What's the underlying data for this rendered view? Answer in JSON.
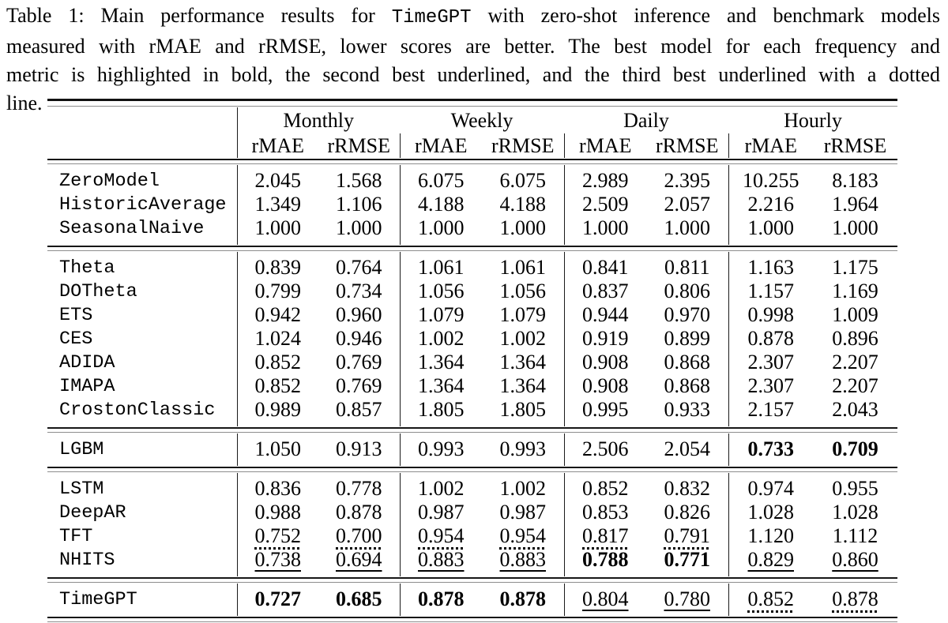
{
  "page": {
    "background": "#ffffff",
    "text_color": "#000000",
    "rule_color": "#161616"
  },
  "caption": {
    "line1_pre": "Table 1: Main performance results for ",
    "line1_code": "TimeGPT",
    "line1_post": " with zero-shot inference and benchmark models",
    "line2": "measured with rMAE and rRMSE, lower scores are better. The best model for each frequency and",
    "line3": "metric is highlighted in bold, the second best underlined, and the third best underlined with a dotted",
    "line4": "line."
  },
  "table": {
    "groups": [
      "Monthly",
      "Weekly",
      "Daily",
      "Hourly"
    ],
    "metrics": [
      "rMAE",
      "rRMSE"
    ],
    "style_key": {
      "p": "plain",
      "b": "bold (best)",
      "u": "underline (second best)",
      "d": "dotted underline (third best)"
    },
    "sections": [
      {
        "rows": [
          {
            "model": "ZeroModel",
            "values": [
              "2.045",
              "1.568",
              "6.075",
              "6.075",
              "2.989",
              "2.395",
              "10.255",
              "8.183"
            ],
            "styles": [
              "p",
              "p",
              "p",
              "p",
              "p",
              "p",
              "p",
              "p"
            ]
          },
          {
            "model": "HistoricAverage",
            "values": [
              "1.349",
              "1.106",
              "4.188",
              "4.188",
              "2.509",
              "2.057",
              "2.216",
              "1.964"
            ],
            "styles": [
              "p",
              "p",
              "p",
              "p",
              "p",
              "p",
              "p",
              "p"
            ]
          },
          {
            "model": "SeasonalNaive",
            "values": [
              "1.000",
              "1.000",
              "1.000",
              "1.000",
              "1.000",
              "1.000",
              "1.000",
              "1.000"
            ],
            "styles": [
              "p",
              "p",
              "p",
              "p",
              "p",
              "p",
              "p",
              "p"
            ]
          }
        ]
      },
      {
        "rows": [
          {
            "model": "Theta",
            "values": [
              "0.839",
              "0.764",
              "1.061",
              "1.061",
              "0.841",
              "0.811",
              "1.163",
              "1.175"
            ],
            "styles": [
              "p",
              "p",
              "p",
              "p",
              "p",
              "p",
              "p",
              "p"
            ]
          },
          {
            "model": "DOTheta",
            "values": [
              "0.799",
              "0.734",
              "1.056",
              "1.056",
              "0.837",
              "0.806",
              "1.157",
              "1.169"
            ],
            "styles": [
              "p",
              "p",
              "p",
              "p",
              "p",
              "p",
              "p",
              "p"
            ]
          },
          {
            "model": "ETS",
            "values": [
              "0.942",
              "0.960",
              "1.079",
              "1.079",
              "0.944",
              "0.970",
              "0.998",
              "1.009"
            ],
            "styles": [
              "p",
              "p",
              "p",
              "p",
              "p",
              "p",
              "p",
              "p"
            ]
          },
          {
            "model": "CES",
            "values": [
              "1.024",
              "0.946",
              "1.002",
              "1.002",
              "0.919",
              "0.899",
              "0.878",
              "0.896"
            ],
            "styles": [
              "p",
              "p",
              "p",
              "p",
              "p",
              "p",
              "p",
              "p"
            ]
          },
          {
            "model": "ADIDA",
            "values": [
              "0.852",
              "0.769",
              "1.364",
              "1.364",
              "0.908",
              "0.868",
              "2.307",
              "2.207"
            ],
            "styles": [
              "p",
              "p",
              "p",
              "p",
              "p",
              "p",
              "p",
              "p"
            ]
          },
          {
            "model": "IMAPA",
            "values": [
              "0.852",
              "0.769",
              "1.364",
              "1.364",
              "0.908",
              "0.868",
              "2.307",
              "2.207"
            ],
            "styles": [
              "p",
              "p",
              "p",
              "p",
              "p",
              "p",
              "p",
              "p"
            ]
          },
          {
            "model": "CrostonClassic",
            "values": [
              "0.989",
              "0.857",
              "1.805",
              "1.805",
              "0.995",
              "0.933",
              "2.157",
              "2.043"
            ],
            "styles": [
              "p",
              "p",
              "p",
              "p",
              "p",
              "p",
              "p",
              "p"
            ]
          }
        ]
      },
      {
        "rows": [
          {
            "model": "LGBM",
            "values": [
              "1.050",
              "0.913",
              "0.993",
              "0.993",
              "2.506",
              "2.054",
              "0.733",
              "0.709"
            ],
            "styles": [
              "p",
              "p",
              "p",
              "p",
              "p",
              "p",
              "b",
              "b"
            ]
          }
        ]
      },
      {
        "rows": [
          {
            "model": "LSTM",
            "values": [
              "0.836",
              "0.778",
              "1.002",
              "1.002",
              "0.852",
              "0.832",
              "0.974",
              "0.955"
            ],
            "styles": [
              "p",
              "p",
              "p",
              "p",
              "p",
              "p",
              "p",
              "p"
            ]
          },
          {
            "model": "DeepAR",
            "values": [
              "0.988",
              "0.878",
              "0.987",
              "0.987",
              "0.853",
              "0.826",
              "1.028",
              "1.028"
            ],
            "styles": [
              "p",
              "p",
              "p",
              "p",
              "p",
              "p",
              "p",
              "p"
            ]
          },
          {
            "model": "TFT",
            "values": [
              "0.752",
              "0.700",
              "0.954",
              "0.954",
              "0.817",
              "0.791",
              "1.120",
              "1.112"
            ],
            "styles": [
              "d",
              "d",
              "d",
              "d",
              "d",
              "d",
              "p",
              "p"
            ]
          },
          {
            "model": "NHITS",
            "values": [
              "0.738",
              "0.694",
              "0.883",
              "0.883",
              "0.788",
              "0.771",
              "0.829",
              "0.860"
            ],
            "styles": [
              "u",
              "u",
              "u",
              "u",
              "b",
              "b",
              "u",
              "u"
            ]
          }
        ]
      },
      {
        "rows": [
          {
            "model": "TimeGPT",
            "values": [
              "0.727",
              "0.685",
              "0.878",
              "0.878",
              "0.804",
              "0.780",
              "0.852",
              "0.878"
            ],
            "styles": [
              "b",
              "b",
              "b",
              "b",
              "u",
              "u",
              "d",
              "d"
            ]
          }
        ]
      }
    ]
  }
}
